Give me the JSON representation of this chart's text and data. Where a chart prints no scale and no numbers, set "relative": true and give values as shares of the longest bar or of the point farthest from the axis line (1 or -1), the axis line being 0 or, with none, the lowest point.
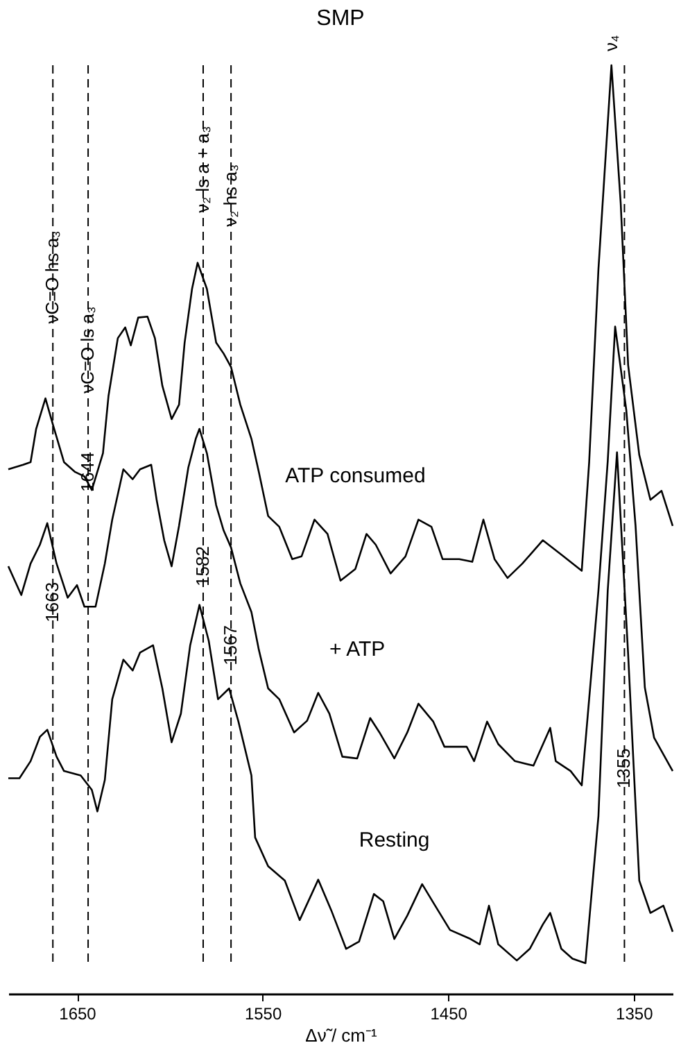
{
  "chart_data": {
    "type": "line",
    "title": "SMP",
    "xlabel": "Δν̃ / cm⁻¹",
    "relative": true,
    "tick_labels": "x",
    "grid": false,
    "line_style": "solid",
    "marker": "none",
    "xlim": [
      1687,
      1329
    ],
    "xticks": [
      1650,
      1550,
      1450,
      1350
    ],
    "series": [
      {
        "name": "ATP consumed",
        "color": "#000000",
        "x": [
          1687,
          1679,
          1675,
          1672,
          1667,
          1663,
          1657,
          1651,
          1646,
          1642,
          1636,
          1633,
          1628,
          1624,
          1621,
          1617,
          1612,
          1608,
          1604,
          1599,
          1595,
          1592,
          1588,
          1585,
          1580,
          1575,
          1571,
          1567,
          1562,
          1556,
          1552,
          1547,
          1541,
          1534,
          1529,
          1522,
          1515,
          1508,
          1500,
          1494,
          1489,
          1481,
          1473,
          1466,
          1459,
          1453,
          1444,
          1437,
          1431,
          1425,
          1418,
          1410,
          1399,
          1389,
          1378,
          1374,
          1369,
          1362,
          1357,
          1353,
          1347,
          1341,
          1335,
          1329
        ],
        "values": [
          0.55,
          0.555,
          0.558,
          0.595,
          0.629,
          0.6,
          0.558,
          0.547,
          0.542,
          0.527,
          0.568,
          0.632,
          0.696,
          0.708,
          0.688,
          0.719,
          0.72,
          0.696,
          0.643,
          0.606,
          0.622,
          0.691,
          0.751,
          0.78,
          0.751,
          0.691,
          0.679,
          0.664,
          0.622,
          0.584,
          0.547,
          0.498,
          0.486,
          0.45,
          0.453,
          0.494,
          0.478,
          0.426,
          0.439,
          0.478,
          0.466,
          0.434,
          0.453,
          0.494,
          0.486,
          0.45,
          0.45,
          0.447,
          0.494,
          0.45,
          0.429,
          0.445,
          0.471,
          0.455,
          0.437,
          0.558,
          0.773,
          1.0,
          0.846,
          0.666,
          0.566,
          0.516,
          0.526,
          0.487
        ]
      },
      {
        "name": "+ ATP",
        "color": "#000000",
        "x": [
          1687,
          1680,
          1675,
          1670,
          1666,
          1661,
          1655,
          1650,
          1646,
          1640,
          1635,
          1631,
          1625,
          1620,
          1616,
          1610,
          1607,
          1603,
          1599,
          1595,
          1590,
          1586,
          1584,
          1580,
          1575,
          1571,
          1567,
          1562,
          1556,
          1552,
          1547,
          1541,
          1533,
          1526,
          1520,
          1514,
          1507,
          1499,
          1492,
          1487,
          1479,
          1472,
          1466,
          1458,
          1452,
          1440,
          1436,
          1429,
          1423,
          1414,
          1404,
          1395,
          1392,
          1384,
          1378,
          1369,
          1364,
          1360,
          1354,
          1349,
          1344,
          1339,
          1329
        ],
        "values": [
          0.442,
          0.41,
          0.445,
          0.466,
          0.49,
          0.445,
          0.407,
          0.421,
          0.397,
          0.397,
          0.445,
          0.494,
          0.55,
          0.539,
          0.55,
          0.555,
          0.515,
          0.471,
          0.442,
          0.487,
          0.552,
          0.584,
          0.595,
          0.568,
          0.51,
          0.482,
          0.463,
          0.423,
          0.391,
          0.349,
          0.306,
          0.294,
          0.257,
          0.27,
          0.301,
          0.278,
          0.23,
          0.228,
          0.273,
          0.257,
          0.228,
          0.257,
          0.289,
          0.269,
          0.241,
          0.241,
          0.225,
          0.269,
          0.244,
          0.225,
          0.22,
          0.262,
          0.225,
          0.214,
          0.198,
          0.415,
          0.559,
          0.709,
          0.616,
          0.487,
          0.307,
          0.251,
          0.214
        ]
      },
      {
        "name": "Resting",
        "color": "#000000",
        "x": [
          1687,
          1681,
          1675,
          1670,
          1666,
          1661,
          1657,
          1648,
          1642,
          1639,
          1635,
          1631,
          1625,
          1620,
          1616,
          1609,
          1604,
          1599,
          1594,
          1589,
          1584,
          1579,
          1574,
          1568,
          1563,
          1556,
          1554,
          1547,
          1538,
          1530,
          1520,
          1513,
          1505,
          1498,
          1490,
          1485,
          1479,
          1472,
          1464,
          1457,
          1449,
          1438,
          1433,
          1428,
          1423,
          1413,
          1406,
          1399,
          1395,
          1389,
          1383,
          1376,
          1369,
          1364,
          1359,
          1353,
          1347,
          1341,
          1334,
          1329
        ],
        "values": [
          0.206,
          0.206,
          0.225,
          0.252,
          0.26,
          0.23,
          0.214,
          0.209,
          0.193,
          0.169,
          0.204,
          0.294,
          0.338,
          0.326,
          0.346,
          0.354,
          0.306,
          0.246,
          0.278,
          0.354,
          0.399,
          0.359,
          0.294,
          0.306,
          0.269,
          0.209,
          0.14,
          0.108,
          0.092,
          0.048,
          0.093,
          0.059,
          0.016,
          0.024,
          0.077,
          0.069,
          0.027,
          0.053,
          0.088,
          0.064,
          0.037,
          0.027,
          0.021,
          0.064,
          0.021,
          0.003,
          0.016,
          0.043,
          0.056,
          0.016,
          0.005,
          0,
          0.164,
          0.415,
          0.569,
          0.344,
          0.092,
          0.056,
          0.064,
          0.035
        ]
      }
    ],
    "ref_lines": [
      {
        "axis": "x",
        "value": 1663,
        "line_style": "dashed"
      },
      {
        "axis": "x",
        "value": 1644,
        "line_style": "dashed"
      },
      {
        "axis": "x",
        "value": 1582,
        "line_style": "dashed"
      },
      {
        "axis": "x",
        "value": 1567,
        "line_style": "dashed"
      },
      {
        "axis": "x",
        "value": 1355,
        "line_style": "dashed"
      }
    ],
    "annotations": [
      {
        "text": "νC=O hs a₃",
        "x": 1663,
        "y": 0.764
      },
      {
        "text": "νC=O ls a₃",
        "x": 1644,
        "y": 0.683
      },
      {
        "text": "ν₂ ls a + a₃",
        "x": 1582,
        "y": 0.884
      },
      {
        "text": "ν₂ hs a₃",
        "x": 1567,
        "y": 0.855
      },
      {
        "text": "ν₄",
        "x": 1362,
        "y": 1.0
      },
      {
        "text": "1663",
        "x": 1663,
        "y": 0.402
      },
      {
        "text": "1644",
        "x": 1644,
        "y": 0.547
      },
      {
        "text": "1582",
        "x": 1582,
        "y": 0.442
      },
      {
        "text": "1567",
        "x": 1567,
        "y": 0.354
      },
      {
        "text": "1355",
        "x": 1355,
        "y": 0.217
      }
    ]
  }
}
